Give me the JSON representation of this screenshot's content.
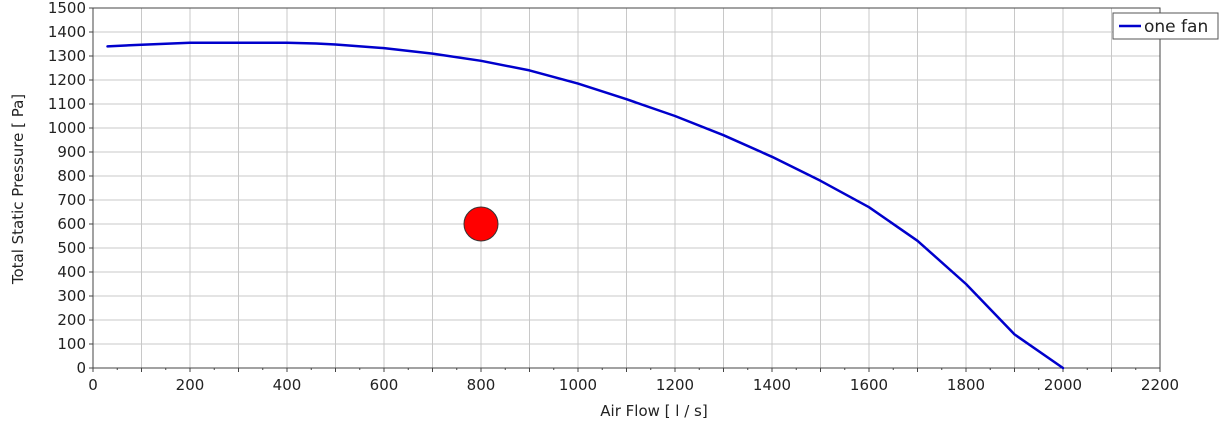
{
  "chart_data": {
    "type": "line",
    "xlabel": "Air Flow  [ l / s]",
    "ylabel": "Total Static Pressure  [ Pa]",
    "xlim": [
      0,
      2200
    ],
    "ylim": [
      0,
      1500
    ],
    "xticks": [
      0,
      200,
      400,
      600,
      800,
      1000,
      1200,
      1400,
      1600,
      1800,
      2000,
      2200
    ],
    "yticks": [
      0,
      100,
      200,
      300,
      400,
      500,
      600,
      700,
      800,
      900,
      1000,
      1100,
      1200,
      1300,
      1400,
      1500
    ],
    "grid": true,
    "legend_position": "top-right",
    "series": [
      {
        "name": "one fan",
        "color": "#0000cc",
        "x": [
          30,
          100,
          200,
          300,
          400,
          460,
          500,
          600,
          700,
          800,
          900,
          1000,
          1100,
          1200,
          1300,
          1400,
          1500,
          1600,
          1700,
          1800,
          1900,
          2000
        ],
        "y": [
          1340,
          1347,
          1355,
          1355,
          1355,
          1352,
          1348,
          1333,
          1310,
          1280,
          1240,
          1185,
          1120,
          1050,
          970,
          880,
          780,
          670,
          530,
          350,
          140,
          0
        ]
      }
    ],
    "points": [
      {
        "x": 800,
        "y": 600,
        "color": "#ff0000"
      }
    ]
  }
}
